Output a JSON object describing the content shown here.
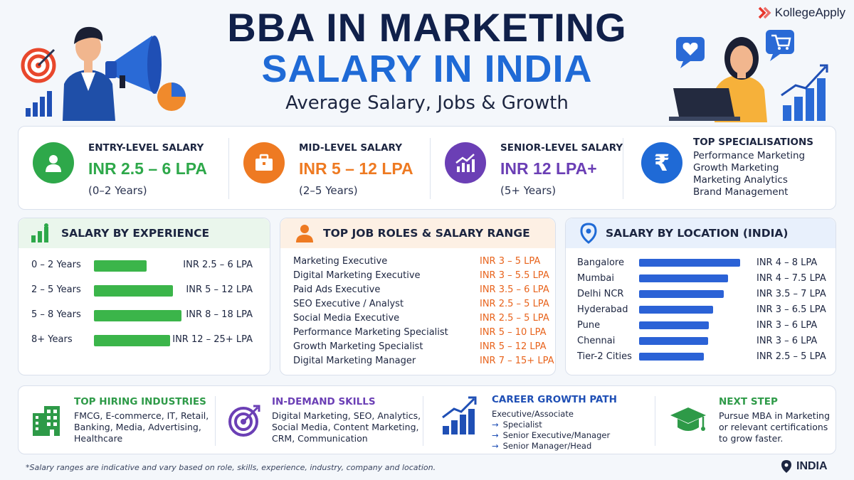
{
  "brand": {
    "name": "KollegeApply",
    "color": "#e8362c"
  },
  "header": {
    "title_line1": "BBA IN MARKETING",
    "title_line2": "SALARY IN INDIA",
    "subtitle": "Average Salary, Jobs & Growth"
  },
  "summary": {
    "entry": {
      "label": "ENTRY-LEVEL SALARY",
      "value": "INR 2.5 – 6 LPA",
      "sub": "(0–2 Years)",
      "icon": "person-icon",
      "color": "#2ea84a"
    },
    "mid": {
      "label": "MID-LEVEL SALARY",
      "value": "INR 5 – 12 LPA",
      "sub": "(2–5 Years)",
      "icon": "briefcase-icon",
      "color": "#ee7a22"
    },
    "senior": {
      "label": "SENIOR-LEVEL SALARY",
      "value": "INR 12 LPA+",
      "sub": "(5+ Years)",
      "icon": "growth-chart-icon",
      "color": "#6b3fb5"
    },
    "specialisations": {
      "label": "TOP SPECIALISATIONS",
      "icon": "rupee-icon",
      "color": "#1f6ad6",
      "items": [
        "Performance Marketing",
        "Growth Marketing",
        "Marketing Analytics",
        "Brand Management"
      ]
    }
  },
  "experience": {
    "title": "SALARY BY EXPERIENCE",
    "bar_color": "#3bb54a",
    "rows": [
      {
        "label": "0 – 2 Years",
        "value": "INR 2.5 – 6 LPA",
        "level": 0.6
      },
      {
        "label": "2 – 5 Years",
        "value": "INR 5 – 12 LPA",
        "level": 0.9
      },
      {
        "label": "5 – 8 Years",
        "value": "INR 8 – 18 LPA",
        "level": 1.0
      },
      {
        "label": "8+ Years",
        "value": "INR 12 – 25+ LPA",
        "level": 0.87
      }
    ]
  },
  "roles": {
    "title": "TOP JOB ROLES & SALARY RANGE",
    "value_color": "#e8631c",
    "rows": [
      {
        "role": "Marketing Executive",
        "salary": "INR 3 – 5 LPA"
      },
      {
        "role": "Digital Marketing Executive",
        "salary": "INR 3 – 5.5 LPA"
      },
      {
        "role": "Paid Ads Executive",
        "salary": "INR 3.5 – 6 LPA"
      },
      {
        "role": "SEO Executive / Analyst",
        "salary": "INR 2.5 – 5 LPA"
      },
      {
        "role": "Social Media Executive",
        "salary": "INR 2.5 – 5 LPA"
      },
      {
        "role": "Performance Marketing Specialist",
        "salary": "INR 5 – 10 LPA"
      },
      {
        "role": "Growth Marketing Specialist",
        "salary": "INR 5 – 12 LPA"
      },
      {
        "role": "Digital Marketing Manager",
        "salary": "INR 7 – 15+ LPA"
      }
    ]
  },
  "location": {
    "title": "SALARY BY LOCATION (INDIA)",
    "bar_color": "#2b62d6",
    "rows": [
      {
        "city": "Bangalore",
        "value": "INR 4 – 8 LPA",
        "level": 1.0
      },
      {
        "city": "Mumbai",
        "value": "INR 4 – 7.5 LPA",
        "level": 0.88
      },
      {
        "city": "Delhi NCR",
        "value": "INR 3.5 – 7 LPA",
        "level": 0.84
      },
      {
        "city": "Hyderabad",
        "value": "INR 3 – 6.5 LPA",
        "level": 0.73
      },
      {
        "city": "Pune",
        "value": "INR 3 – 6 LPA",
        "level": 0.69
      },
      {
        "city": "Chennai",
        "value": "INR 3 – 6 LPA",
        "level": 0.68
      },
      {
        "city": "Tier-2 Cities",
        "value": "INR 2.5 – 5 LPA",
        "level": 0.64
      }
    ]
  },
  "bottom": {
    "industries": {
      "title": "TOP HIRING INDUSTRIES",
      "color": "#2e9a48",
      "text": [
        "FMCG, E-commerce, IT, Retail,",
        "Banking, Media, Advertising,",
        "Healthcare"
      ]
    },
    "skills": {
      "title": "IN-DEMAND SKILLS",
      "color": "#6b3fb5",
      "text": [
        "Digital Marketing, SEO, Analytics,",
        "Social Media, Content Marketing,",
        "CRM, Communication"
      ]
    },
    "growth": {
      "title": "CAREER GROWTH PATH",
      "color": "#1f4fb5",
      "first": "Executive/Associate",
      "steps": [
        "Specialist",
        "Senior Executive/Manager",
        "Senior Manager/Head"
      ],
      "arrow": "→"
    },
    "next": {
      "title": "NEXT STEP",
      "color": "#2e9a48",
      "text": [
        "Pursue MBA in Marketing",
        "or relevant certifications",
        "to grow faster."
      ]
    }
  },
  "footnote": "*Salary ranges are indicative and vary based on role, skills, experience, industry, company and location.",
  "country": "INDIA"
}
